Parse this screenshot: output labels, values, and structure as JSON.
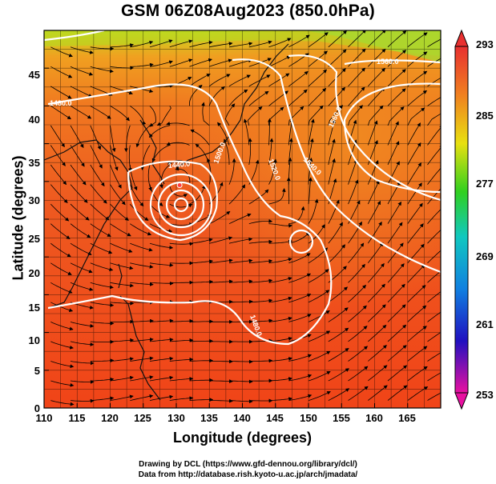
{
  "title": "GSM 06Z08Aug2023 (850.0hPa)",
  "axes": {
    "xlabel": "Longitude (degrees)",
    "ylabel": "Latitude (degrees)",
    "xlim": [
      110,
      170
    ],
    "ylim": [
      0,
      50
    ],
    "x_ticks": [
      "110",
      "115",
      "120",
      "125",
      "130",
      "135",
      "140",
      "145",
      "150",
      "155",
      "160",
      "165"
    ],
    "y_ticks": [
      "0",
      "5",
      "10",
      "15",
      "20",
      "25",
      "30",
      "35",
      "40",
      "45"
    ]
  },
  "colorbar": {
    "labels": [
      "293",
      "285",
      "277",
      "269",
      "261",
      "253"
    ],
    "range": [
      253,
      293
    ],
    "colors": [
      "#e8108a",
      "#2010c0",
      "#1090e0",
      "#20c860",
      "#e8e010",
      "#f08020",
      "#e83030"
    ]
  },
  "contours": {
    "labels": [
      "1440.0",
      "1500.0",
      "1520.0",
      "1540.0",
      "1560.0",
      "1560.0",
      "1480.0",
      "1480.0"
    ],
    "typhoon_center": [
      130.5,
      29.5
    ]
  },
  "credits": {
    "line1": "Drawing by DCL (https://www.gfd-dennou.org/library/dcl/)",
    "line2": "Data from http://database.rish.kyoto-u.ac.jp/arch/jmadata/"
  },
  "map_colors": {
    "warm": "#f04a20",
    "orange": "#f08a20",
    "yellow": "#c8d820",
    "contour": "#ffffff",
    "coast": "#000000"
  }
}
